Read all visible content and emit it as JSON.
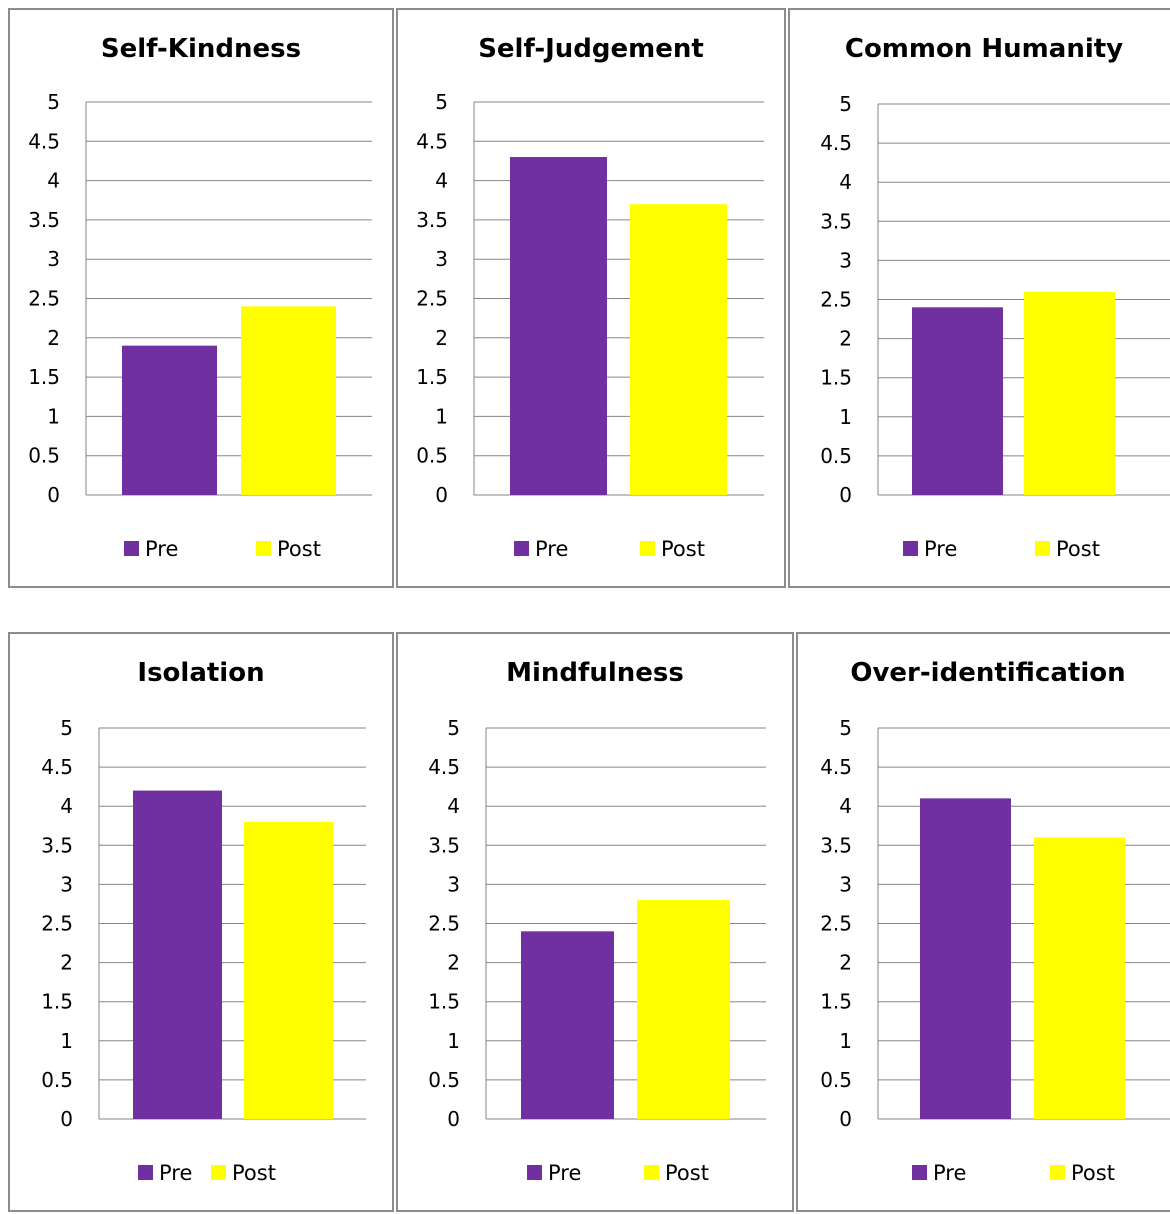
{
  "colors": {
    "pre": "#7030a0",
    "post": "#ffff00",
    "grid": "#868686",
    "text": "#000000"
  },
  "legend": {
    "pre": "Pre",
    "post": "Post"
  },
  "y_ticks": [
    "0",
    "0.5",
    "1",
    "1.5",
    "2",
    "2.5",
    "3",
    "3.5",
    "4",
    "4.5",
    "5"
  ],
  "chart_data": [
    {
      "type": "bar",
      "title": "Self-Kindness",
      "categories": [
        "Pre",
        "Post"
      ],
      "values": [
        1.9,
        2.4
      ],
      "ylim": [
        0,
        5
      ],
      "grid": true,
      "legend_position": "bottom"
    },
    {
      "type": "bar",
      "title": "Self-Judgement",
      "categories": [
        "Pre",
        "Post"
      ],
      "values": [
        4.3,
        3.7
      ],
      "ylim": [
        0,
        5
      ],
      "grid": true,
      "legend_position": "bottom"
    },
    {
      "type": "bar",
      "title": "Common Humanity",
      "categories": [
        "Pre",
        "Post"
      ],
      "values": [
        2.4,
        2.6
      ],
      "ylim": [
        0,
        5
      ],
      "grid": true,
      "legend_position": "bottom"
    },
    {
      "type": "bar",
      "title": "Isolation",
      "categories": [
        "Pre",
        "Post"
      ],
      "values": [
        4.2,
        3.8
      ],
      "ylim": [
        0,
        5
      ],
      "grid": true,
      "legend_position": "bottom"
    },
    {
      "type": "bar",
      "title": "Mindfulness",
      "categories": [
        "Pre",
        "Post"
      ],
      "values": [
        2.4,
        2.8
      ],
      "ylim": [
        0,
        5
      ],
      "grid": true,
      "legend_position": "bottom"
    },
    {
      "type": "bar",
      "title": "Over-identification",
      "categories": [
        "Pre",
        "Post"
      ],
      "values": [
        4.1,
        3.6
      ],
      "ylim": [
        0,
        5
      ],
      "grid": true,
      "legend_position": "bottom"
    }
  ]
}
